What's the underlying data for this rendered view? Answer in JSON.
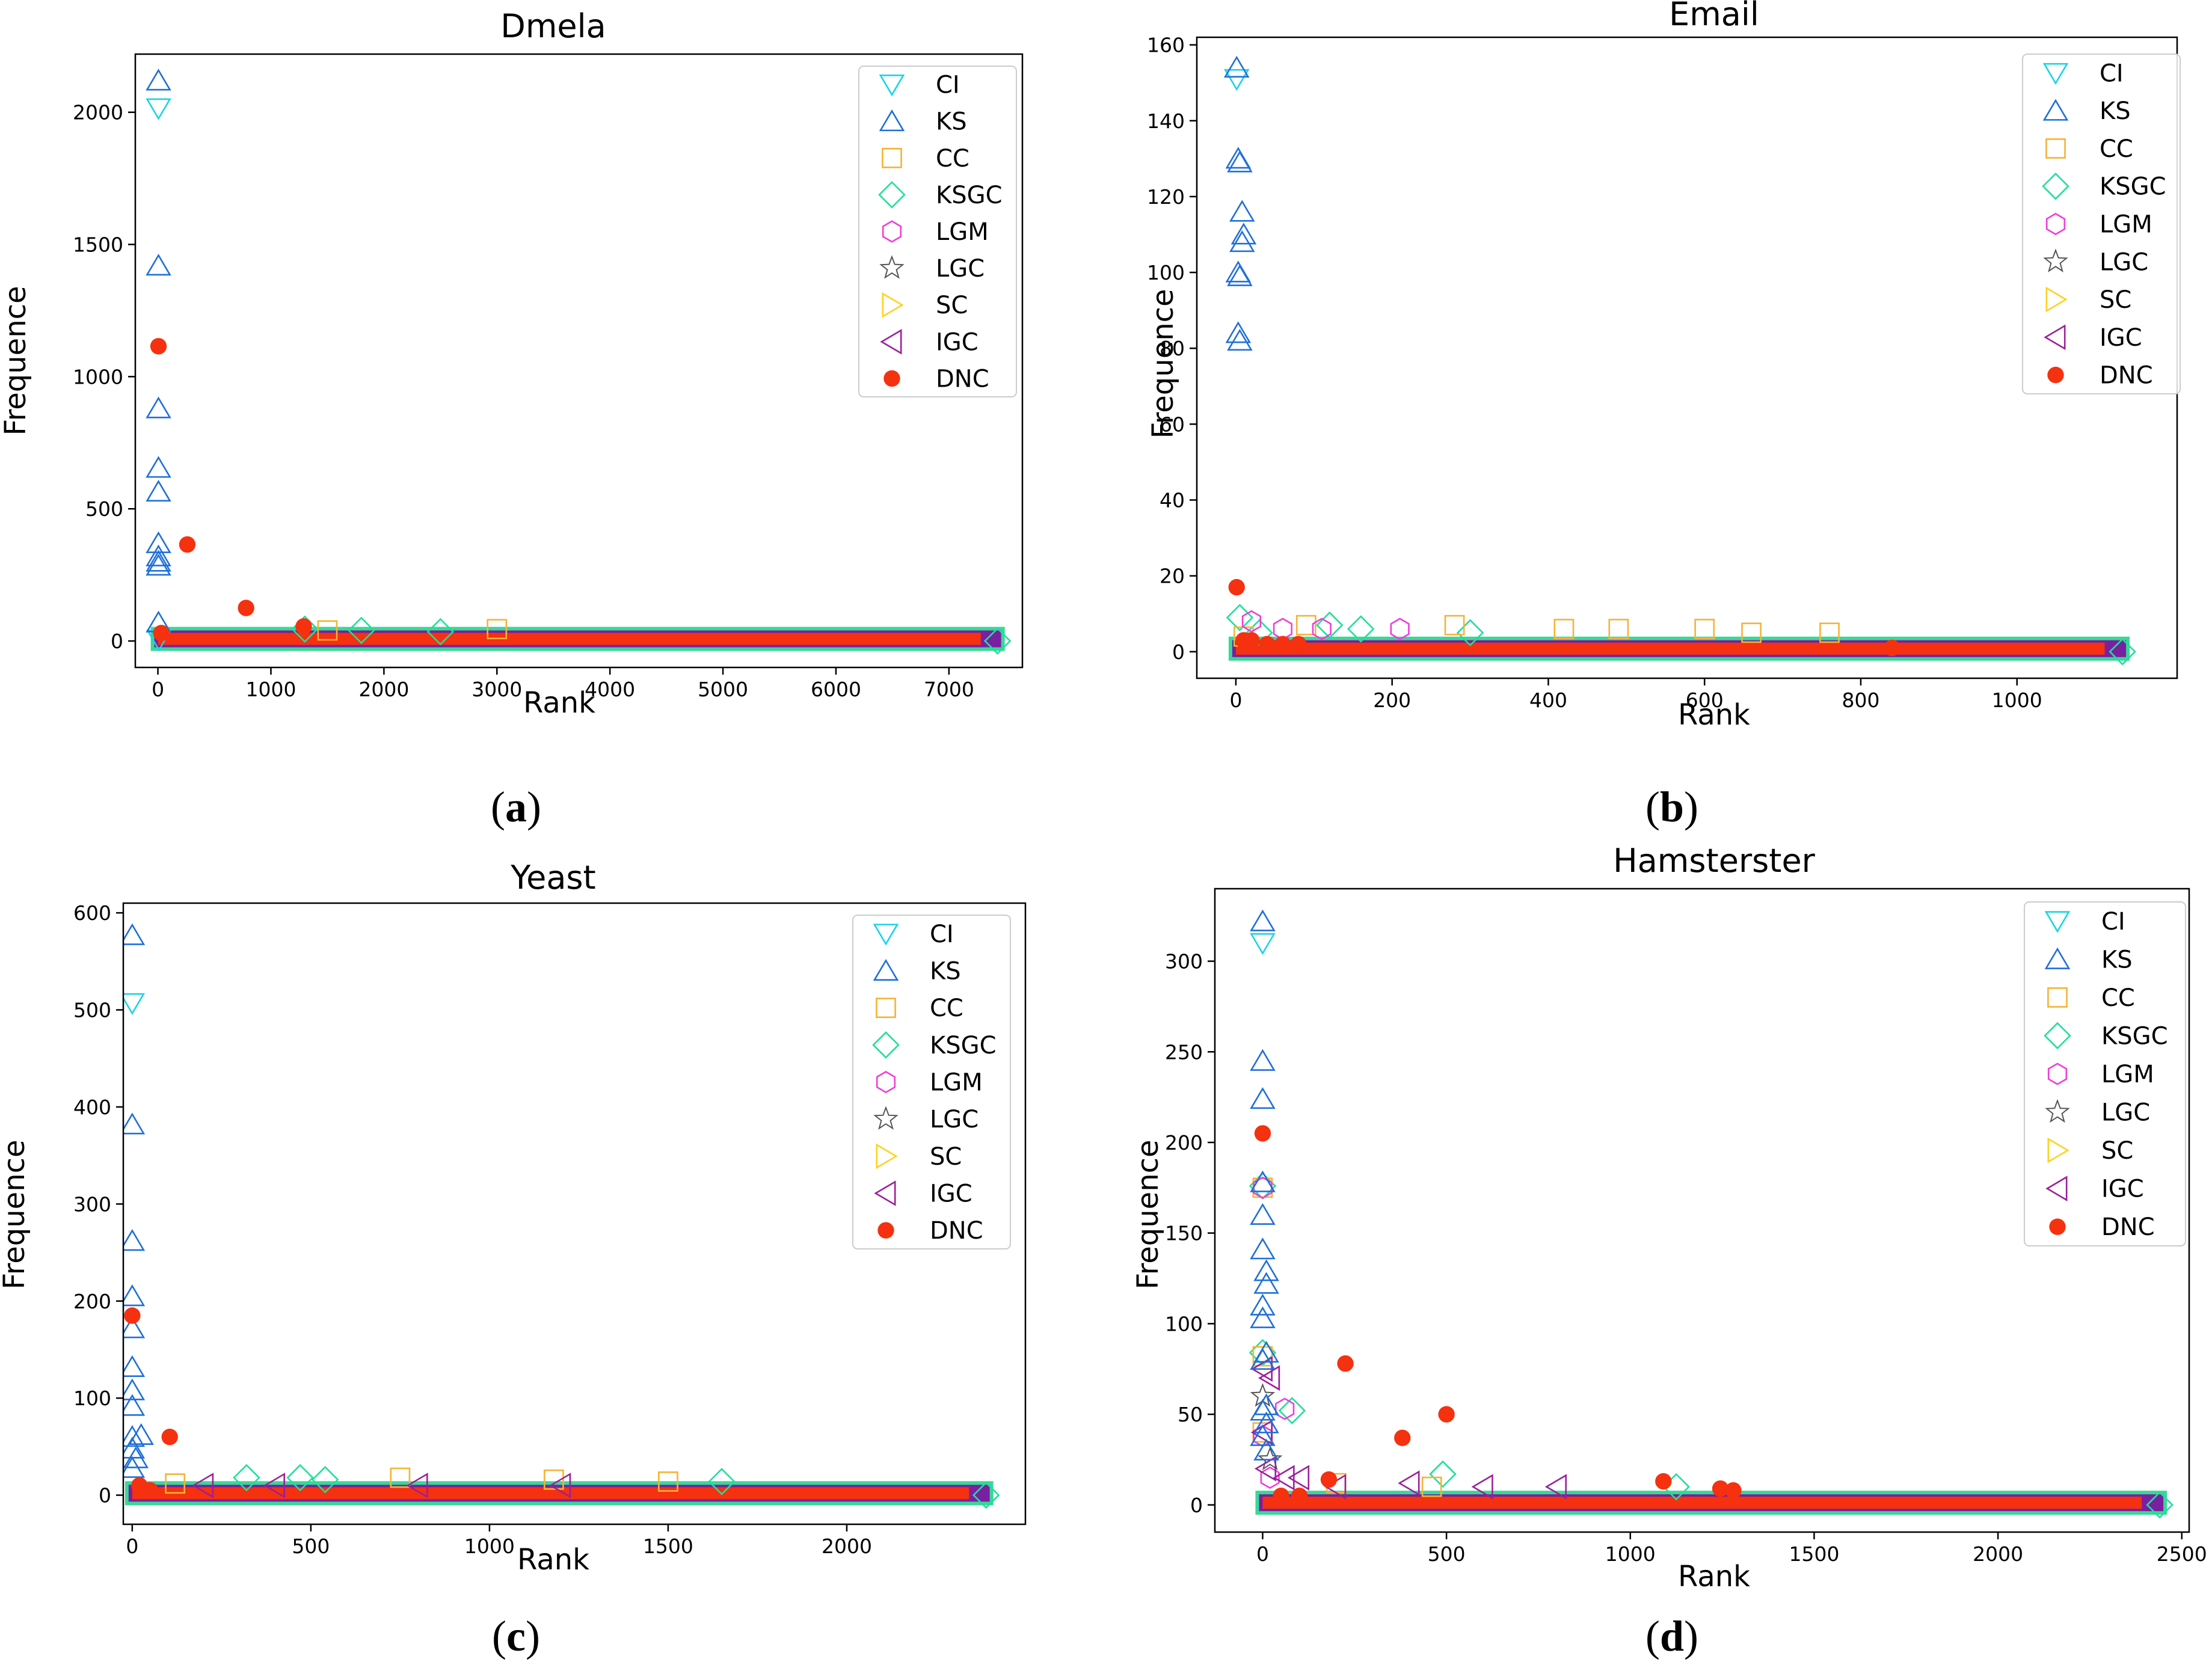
{
  "colors": {
    "CI": "#17d4e6",
    "KS": "#1f6fd9",
    "CC": "#f5b335",
    "KSGC": "#1ee09a",
    "LGM": "#f03cdc",
    "LGC": "#555555",
    "SC": "#ffd21f",
    "IGC": "#9b1f9b",
    "DNC": "#f5310f",
    "band": "#7a1fa0",
    "band_edge": "#22d48a"
  },
  "icons": {
    "CI": "triangle-down-icon",
    "KS": "triangle-up-icon",
    "CC": "square-icon",
    "KSGC": "diamond-icon",
    "LGM": "hexagon-icon",
    "LGC": "star-icon",
    "SC": "triangle-right-icon",
    "IGC": "triangle-left-icon",
    "DNC": "filled-circle-icon"
  },
  "chart_data": [
    {
      "type": "scatter",
      "panel": "a",
      "caption": {
        "open": "(",
        "letter": "a",
        "close": ")"
      },
      "title": "Dmela",
      "xlabel": "Rank",
      "ylabel": "Frequence",
      "xlim": [
        -200,
        7650
      ],
      "ylim": [
        -100,
        2220
      ],
      "xticks": [
        0,
        1000,
        2000,
        3000,
        4000,
        5000,
        6000,
        7000
      ],
      "yticks": [
        0,
        500,
        1000,
        1500,
        2000
      ],
      "xtick_labels": [
        "0",
        "1000",
        "2000",
        "3000",
        "4000",
        "5000",
        "6000",
        "7000"
      ],
      "ytick_labels": [
        "0",
        "500",
        "1000",
        "1500",
        "2000"
      ],
      "band_xmax": 7430,
      "band_ymax": 20,
      "legend": [
        "CI",
        "KS",
        "CC",
        "KSGC",
        "LGM",
        "LGC",
        "SC",
        "IGC",
        "DNC"
      ],
      "legend_position": "top-right",
      "series": [
        {
          "name": "CI",
          "points": [
            [
              5,
              2015
            ],
            [
              10,
              5
            ]
          ]
        },
        {
          "name": "KS",
          "points": [
            [
              5,
              2120
            ],
            [
              5,
              1420
            ],
            [
              5,
              880
            ],
            [
              5,
              655
            ],
            [
              5,
              565
            ],
            [
              5,
              370
            ],
            [
              5,
              320
            ],
            [
              5,
              300
            ],
            [
              5,
              285
            ],
            [
              5,
              70
            ]
          ]
        },
        {
          "name": "CC",
          "points": [
            [
              3000,
              45
            ],
            [
              1500,
              40
            ]
          ]
        },
        {
          "name": "KSGC",
          "points": [
            [
              1300,
              45
            ],
            [
              1800,
              40
            ],
            [
              2500,
              35
            ],
            [
              7430,
              0
            ]
          ]
        },
        {
          "name": "DNC",
          "points": [
            [
              5,
              1115
            ],
            [
              260,
              365
            ],
            [
              780,
              125
            ],
            [
              1290,
              55
            ],
            [
              30,
              30
            ]
          ]
        }
      ]
    },
    {
      "type": "scatter",
      "panel": "b",
      "caption": {
        "open": "(",
        "letter": "b",
        "close": ")"
      },
      "title": "Email",
      "xlabel": "Rank",
      "ylabel": "Frequence",
      "xlim": [
        -50,
        1205
      ],
      "ylim": [
        -7,
        162
      ],
      "xticks": [
        0,
        200,
        400,
        600,
        800,
        1000
      ],
      "yticks": [
        0,
        20,
        40,
        60,
        80,
        100,
        120,
        140,
        160
      ],
      "xtick_labels": [
        "0",
        "200",
        "400",
        "600",
        "800",
        "1000"
      ],
      "ytick_labels": [
        "0",
        "20",
        "40",
        "60",
        "80",
        "100",
        "120",
        "140",
        "160"
      ],
      "band_xmax": 1135,
      "band_ymax": 2,
      "legend": [
        "CI",
        "KS",
        "CC",
        "KSGC",
        "LGM",
        "LGC",
        "SC",
        "IGC",
        "DNC"
      ],
      "legend_position": "top-right",
      "series": [
        {
          "name": "CI",
          "points": [
            [
              1,
              151
            ]
          ]
        },
        {
          "name": "KS",
          "points": [
            [
              1,
              154
            ],
            [
              3,
              130
            ],
            [
              5,
              129
            ],
            [
              8,
              116
            ],
            [
              10,
              110
            ],
            [
              8,
              108
            ],
            [
              3,
              100
            ],
            [
              5,
              99
            ],
            [
              3,
              84
            ],
            [
              5,
              82
            ]
          ]
        },
        {
          "name": "CC",
          "points": [
            [
              90,
              7
            ],
            [
              280,
              7
            ],
            [
              420,
              6
            ],
            [
              490,
              6
            ],
            [
              600,
              6
            ],
            [
              660,
              5
            ],
            [
              760,
              5
            ],
            [
              10,
              4
            ]
          ]
        },
        {
          "name": "KSGC",
          "points": [
            [
              5,
              9
            ],
            [
              120,
              7
            ],
            [
              160,
              6
            ],
            [
              30,
              5
            ],
            [
              300,
              5
            ],
            [
              1135,
              0
            ]
          ]
        },
        {
          "name": "LGM",
          "points": [
            [
              20,
              8
            ],
            [
              60,
              6
            ],
            [
              110,
              6
            ],
            [
              210,
              6
            ]
          ]
        },
        {
          "name": "DNC",
          "points": [
            [
              1,
              17
            ],
            [
              10,
              3
            ],
            [
              20,
              3
            ],
            [
              40,
              2
            ],
            [
              60,
              2
            ],
            [
              80,
              2
            ],
            [
              840,
              1
            ]
          ]
        }
      ]
    },
    {
      "type": "scatter",
      "panel": "c",
      "caption": {
        "open": "(",
        "letter": "c",
        "close": ")"
      },
      "title": "Yeast",
      "xlabel": "Rank",
      "ylabel": "Frequence",
      "xlim": [
        -25,
        2500
      ],
      "ylim": [
        -30,
        610
      ],
      "xticks": [
        0,
        500,
        1000,
        1500,
        2000
      ],
      "yticks": [
        0,
        100,
        200,
        300,
        400,
        500,
        600
      ],
      "xtick_labels": [
        "0",
        "500",
        "1000",
        "1500",
        "2000"
      ],
      "ytick_labels": [
        "0",
        "100",
        "200",
        "300",
        "400",
        "500",
        "600"
      ],
      "band_xmax": 2390,
      "band_ymax": 5,
      "legend": [
        "CI",
        "KS",
        "CC",
        "KSGC",
        "LGM",
        "LGC",
        "SC",
        "IGC",
        "DNC"
      ],
      "legend_position": "top-right",
      "series": [
        {
          "name": "CI",
          "points": [
            [
              0,
              507
            ]
          ]
        },
        {
          "name": "KS",
          "points": [
            [
              0,
              577
            ],
            [
              0,
              382
            ],
            [
              0,
              262
            ],
            [
              0,
              205
            ],
            [
              0,
              172
            ],
            [
              0,
              132
            ],
            [
              0,
              108
            ],
            [
              0,
              92
            ],
            [
              0,
              60
            ],
            [
              25,
              62
            ],
            [
              0,
              48
            ],
            [
              10,
              38
            ],
            [
              0,
              28
            ]
          ]
        },
        {
          "name": "CC",
          "points": [
            [
              750,
              18
            ],
            [
              1180,
              16
            ],
            [
              1500,
              14
            ],
            [
              120,
              12
            ]
          ]
        },
        {
          "name": "KSGC",
          "points": [
            [
              320,
              18
            ],
            [
              470,
              18
            ],
            [
              540,
              16
            ],
            [
              1650,
              14
            ],
            [
              2390,
              0
            ]
          ]
        },
        {
          "name": "IGC",
          "points": [
            [
              200,
              10
            ],
            [
              400,
              10
            ],
            [
              800,
              10
            ],
            [
              1200,
              10
            ]
          ]
        },
        {
          "name": "DNC",
          "points": [
            [
              0,
              185
            ],
            [
              105,
              60
            ],
            [
              20,
              10
            ],
            [
              50,
              5
            ]
          ]
        }
      ]
    },
    {
      "type": "scatter",
      "panel": "d",
      "caption": {
        "open": "(",
        "letter": "d",
        "close": ")"
      },
      "title": "Hamsterster",
      "xlabel": "Rank",
      "ylabel": "Frequence",
      "xlim": [
        -130,
        2520
      ],
      "ylim": [
        -15,
        340
      ],
      "xticks": [
        0,
        500,
        1000,
        1500,
        2000,
        2500
      ],
      "yticks": [
        0,
        50,
        100,
        150,
        200,
        250,
        300
      ],
      "xtick_labels": [
        "0",
        "500",
        "1000",
        "1500",
        "2000",
        "2500"
      ],
      "ytick_labels": [
        "0",
        "50",
        "100",
        "150",
        "200",
        "250",
        "300"
      ],
      "band_xmax": 2440,
      "band_ymax": 3,
      "legend": [
        "CI",
        "KS",
        "CC",
        "KSGC",
        "LGM",
        "LGC",
        "SC",
        "IGC",
        "DNC"
      ],
      "legend_position": "top-right",
      "series": [
        {
          "name": "CI",
          "points": [
            [
              0,
              310
            ]
          ]
        },
        {
          "name": "KS",
          "points": [
            [
              0,
              322
            ],
            [
              0,
              245
            ],
            [
              0,
              224
            ],
            [
              0,
              178
            ],
            [
              0,
              160
            ],
            [
              0,
              141
            ],
            [
              10,
              129
            ],
            [
              10,
              122
            ],
            [
              0,
              110
            ],
            [
              0,
              103
            ],
            [
              10,
              84
            ],
            [
              0,
              80
            ],
            [
              10,
              55
            ],
            [
              0,
              52
            ],
            [
              10,
              45
            ],
            [
              0,
              38
            ],
            [
              10,
              30
            ]
          ]
        },
        {
          "name": "CC",
          "points": [
            [
              0,
              175
            ],
            [
              0,
              82
            ],
            [
              0,
              40
            ],
            [
              200,
              12
            ],
            [
              460,
              10
            ]
          ]
        },
        {
          "name": "KSGC",
          "points": [
            [
              0,
              176
            ],
            [
              0,
              84
            ],
            [
              80,
              52
            ],
            [
              490,
              17
            ],
            [
              1125,
              10
            ],
            [
              2440,
              0
            ]
          ]
        },
        {
          "name": "LGM",
          "points": [
            [
              0,
              175
            ],
            [
              60,
              53
            ],
            [
              0,
              38
            ],
            [
              20,
              15
            ]
          ]
        },
        {
          "name": "LGC",
          "points": [
            [
              0,
              60
            ],
            [
              20,
              25
            ]
          ]
        },
        {
          "name": "IGC",
          "points": [
            [
              0,
              75
            ],
            [
              20,
              70
            ],
            [
              0,
              40
            ],
            [
              10,
              20
            ],
            [
              60,
              15
            ],
            [
              100,
              15
            ],
            [
              200,
              10
            ],
            [
              400,
              12
            ],
            [
              600,
              10
            ],
            [
              800,
              10
            ]
          ]
        },
        {
          "name": "DNC",
          "points": [
            [
              0,
              205
            ],
            [
              225,
              78
            ],
            [
              500,
              50
            ],
            [
              380,
              37
            ],
            [
              180,
              14
            ],
            [
              1090,
              13
            ],
            [
              1245,
              9
            ],
            [
              1280,
              8
            ],
            [
              50,
              5
            ],
            [
              100,
              5
            ]
          ]
        }
      ]
    }
  ]
}
